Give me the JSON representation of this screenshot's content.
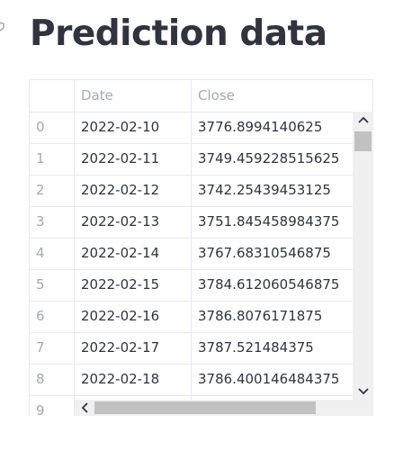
{
  "page": {
    "title": "Prediction data",
    "anchor_icon": "link-icon"
  },
  "table": {
    "columns": [
      "",
      "Date",
      "Close"
    ],
    "rows": [
      {
        "index": "0",
        "date": "2022-02-10",
        "close": "3776.8994140625"
      },
      {
        "index": "1",
        "date": "2022-02-11",
        "close": "3749.459228515625"
      },
      {
        "index": "2",
        "date": "2022-02-12",
        "close": "3742.25439453125"
      },
      {
        "index": "3",
        "date": "2022-02-13",
        "close": "3751.845458984375"
      },
      {
        "index": "4",
        "date": "2022-02-14",
        "close": "3767.68310546875"
      },
      {
        "index": "5",
        "date": "2022-02-15",
        "close": "3784.612060546875"
      },
      {
        "index": "6",
        "date": "2022-02-16",
        "close": "3786.8076171875"
      },
      {
        "index": "7",
        "date": "2022-02-17",
        "close": "3787.521484375"
      },
      {
        "index": "8",
        "date": "2022-02-18",
        "close": "3786.400146484375"
      },
      {
        "index": "9",
        "date": "",
        "close": ""
      }
    ]
  },
  "scrollbars": {
    "vertical_icons": {
      "up": "chevron-up-icon",
      "down": "chevron-down-icon"
    },
    "horizontal_icons": {
      "left": "chevron-left-icon",
      "right": "chevron-right-icon"
    }
  },
  "colors": {
    "text": "#31333f",
    "muted": "#a6a9b1",
    "grid": "#e6e8ee",
    "scroll_track": "#f0f0f0",
    "scroll_thumb": "#c1c1c1"
  }
}
